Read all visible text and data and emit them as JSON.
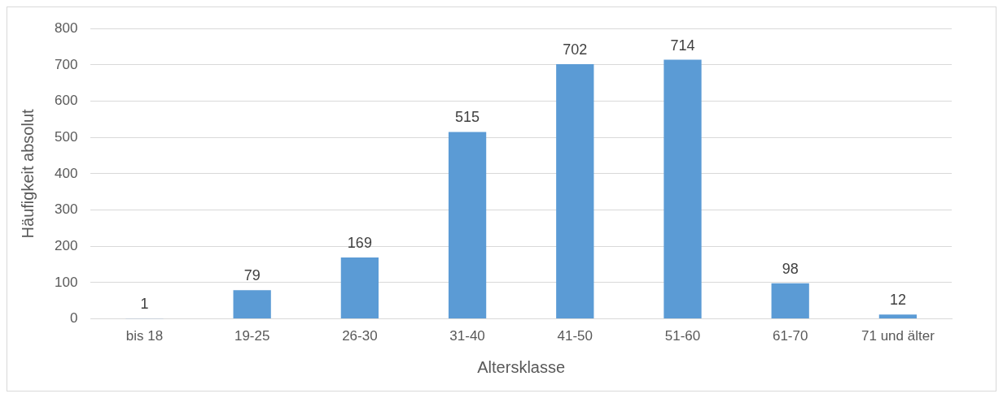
{
  "chart_data": {
    "type": "bar",
    "xlabel": "Altersklasse",
    "ylabel": "Häufigkeit absolut",
    "categories": [
      "bis 18",
      "19-25",
      "26-30",
      "31-40",
      "41-50",
      "51-60",
      "61-70",
      "71 und älter"
    ],
    "values": [
      1,
      79,
      169,
      515,
      702,
      714,
      98,
      12
    ],
    "color": "#5b9bd5",
    "ylim": [
      0,
      800
    ],
    "yticks": [
      0,
      100,
      200,
      300,
      400,
      500,
      600,
      700,
      800
    ],
    "grid": "y",
    "legend": false,
    "data_labels": true
  }
}
